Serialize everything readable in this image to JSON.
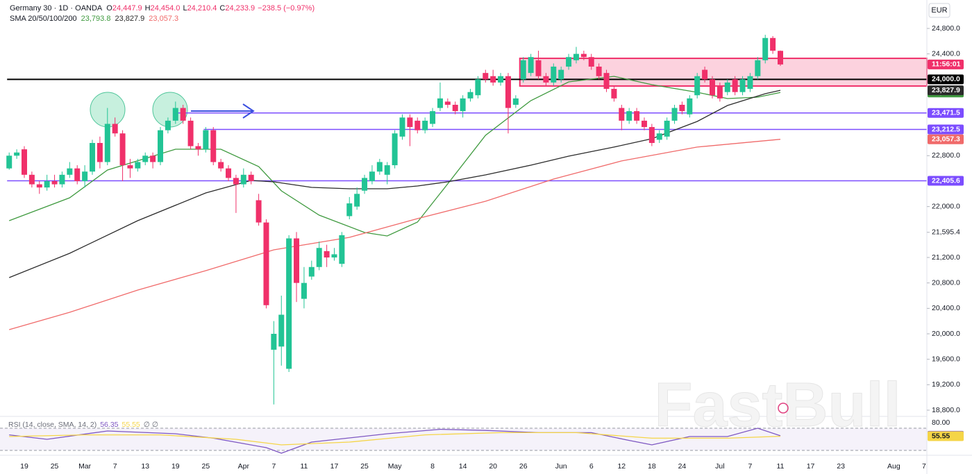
{
  "chart_data": {
    "type": "candlestick",
    "title": "Germany 30 · 1D · OANDA",
    "ohlc": [
      {
        "key": "O",
        "value": "24,447.9"
      },
      {
        "key": "H",
        "value": "24,454.0"
      },
      {
        "key": "L",
        "value": "24,210.4"
      },
      {
        "key": "C",
        "value": "24,233.9"
      }
    ],
    "change": "−238.5 (−0.97%)",
    "sma_title": "SMA 20/50/100/200",
    "currency": "EUR",
    "watermark": "FastBull",
    "countdown": "11:56:01",
    "up_color": "#22c495",
    "down_color": "#f0306a",
    "categories": [
      null,
      null,
      "19",
      null,
      null,
      null,
      "25",
      null,
      null,
      null,
      "Mar",
      null,
      null,
      null,
      "7",
      null,
      null,
      null,
      "13",
      null,
      null,
      null,
      "19",
      null,
      null,
      null,
      "25",
      null,
      null,
      null,
      null,
      "Apr",
      null,
      null,
      null,
      "7",
      null,
      null,
      null,
      "11",
      null,
      null,
      null,
      "17",
      null,
      null,
      null,
      "25",
      null,
      null,
      null,
      "May",
      null,
      null,
      null,
      null,
      "8",
      null,
      null,
      null,
      "14",
      null,
      null,
      null,
      "20",
      null,
      null,
      null,
      "26",
      null,
      null,
      null,
      null,
      "Jun",
      null,
      null,
      null,
      "6",
      null,
      null,
      null,
      "12",
      null,
      null,
      null,
      "18",
      null,
      null,
      null,
      "24",
      null,
      null,
      null,
      null,
      "Jul",
      null,
      null,
      null,
      "7",
      null,
      null,
      null,
      "11",
      null,
      null,
      null,
      "17",
      null,
      null,
      null,
      "23",
      null,
      null,
      null,
      null,
      null,
      null,
      "Aug",
      null,
      null,
      null,
      "7"
    ],
    "open": [
      22600,
      22800,
      22900,
      22500,
      22350,
      22300,
      22400,
      22350,
      22500,
      22600,
      22400,
      22550,
      23000,
      22700,
      23300,
      23150,
      22650,
      22600,
      22700,
      22800,
      22700,
      23200,
      23350,
      23550,
      23350,
      22950,
      22900,
      23200,
      22700,
      22600,
      22450,
      22350,
      22500,
      22100,
      21750,
      19750,
      19800,
      19450,
      21500,
      20550,
      20900,
      21050,
      21300,
      21200,
      21100,
      21850,
      22000,
      22250,
      22400,
      22550,
      22500,
      22650,
      23100,
      23400,
      23350,
      23200,
      23300,
      23550,
      23650,
      23600,
      23500,
      23700,
      23750,
      24100,
      24050,
      23950,
      24050,
      23600,
      24000,
      24100,
      24300,
      24050,
      23950,
      24000,
      24200,
      24300,
      24400,
      24350,
      24200,
      24100,
      23850,
      23550,
      23350,
      23500,
      23350,
      23250,
      23050,
      23100,
      23350,
      23600,
      23450,
      23750,
      24150,
      24000,
      23900,
      23800,
      24000,
      23800,
      23850,
      24050,
      24300,
      24650,
      24447.9,
      null,
      null,
      null,
      null,
      null,
      null,
      null,
      null,
      null,
      null,
      null,
      null,
      null,
      null,
      null,
      null,
      null,
      null,
      null
    ],
    "high": [
      22850,
      22900,
      22950,
      22550,
      22400,
      22500,
      22500,
      22550,
      22700,
      22650,
      22650,
      23050,
      23100,
      23550,
      23400,
      23200,
      22750,
      22750,
      22850,
      22850,
      23250,
      23400,
      23650,
      23600,
      23400,
      23000,
      23250,
      23250,
      22750,
      22650,
      22500,
      22600,
      22550,
      22200,
      21800,
      20200,
      20600,
      21550,
      21600,
      21050,
      21150,
      21450,
      21400,
      21350,
      21600,
      22150,
      22300,
      22500,
      22650,
      22750,
      22700,
      23200,
      23450,
      23450,
      23400,
      23400,
      23550,
      23950,
      23700,
      23650,
      23750,
      23850,
      24050,
      24150,
      24150,
      24100,
      24100,
      23750,
      24350,
      24400,
      24450,
      24100,
      24250,
      24200,
      24400,
      24510,
      24450,
      24400,
      24250,
      24150,
      23900,
      23600,
      23550,
      23550,
      23400,
      23300,
      23200,
      23400,
      23600,
      23650,
      23750,
      24100,
      24200,
      24050,
      23950,
      24000,
      24050,
      24050,
      24100,
      24350,
      24700,
      24680,
      24454.0,
      null,
      null,
      null,
      null,
      null,
      null,
      null,
      null,
      null,
      null,
      null,
      null,
      null,
      null,
      null,
      null,
      null,
      null,
      null
    ],
    "low": [
      22580,
      22750,
      22450,
      22300,
      22200,
      22250,
      22300,
      22300,
      22450,
      22350,
      22300,
      22500,
      22600,
      22650,
      23100,
      22400,
      22450,
      22550,
      22650,
      22600,
      22650,
      23150,
      23300,
      23300,
      22900,
      22800,
      22850,
      22650,
      22550,
      22400,
      21900,
      22300,
      22350,
      21700,
      20400,
      18890,
      19500,
      19400,
      20500,
      20400,
      20850,
      21000,
      21050,
      21150,
      21050,
      21800,
      21950,
      22200,
      22350,
      22500,
      22350,
      22600,
      23050,
      22950,
      23150,
      23150,
      23250,
      23500,
      23550,
      23450,
      23400,
      23650,
      23700,
      23950,
      23900,
      23900,
      23150,
      23550,
      23950,
      24050,
      24000,
      23900,
      23900,
      23950,
      24150,
      24250,
      24300,
      24150,
      24000,
      23800,
      23650,
      23200,
      23300,
      23300,
      23200,
      22950,
      23000,
      23050,
      23300,
      23450,
      23400,
      23700,
      23950,
      23700,
      23650,
      23750,
      23750,
      23750,
      23800,
      24000,
      24250,
      24400,
      24210.4,
      null,
      null,
      null,
      null,
      null,
      null,
      null,
      null,
      null,
      null,
      null,
      null,
      null,
      null,
      null,
      null,
      null,
      null,
      null
    ],
    "close": [
      22800,
      22850,
      22500,
      22350,
      22300,
      22400,
      22350,
      22500,
      22600,
      22400,
      22550,
      23000,
      22700,
      23300,
      23150,
      22650,
      22600,
      22700,
      22800,
      22700,
      23200,
      23350,
      23550,
      23350,
      22950,
      22900,
      23200,
      22700,
      22600,
      22450,
      22350,
      22500,
      22400,
      21750,
      20450,
      20000,
      20300,
      21500,
      20800,
      20800,
      21050,
      21350,
      21200,
      21250,
      21550,
      22050,
      22200,
      22450,
      22550,
      22700,
      22650,
      23150,
      23400,
      23250,
      23200,
      23350,
      23500,
      23700,
      23600,
      23500,
      23700,
      23800,
      24000,
      24000,
      23950,
      24050,
      23550,
      23700,
      24300,
      24350,
      24050,
      23950,
      24200,
      24150,
      24350,
      24400,
      24350,
      24200,
      24050,
      23850,
      23700,
      23350,
      23500,
      23350,
      23250,
      23000,
      23150,
      23350,
      23550,
      23500,
      23700,
      24050,
      24000,
      23750,
      23700,
      23950,
      23800,
      24000,
      24050,
      24300,
      24650,
      24450,
      24233.9,
      null,
      null,
      null,
      null,
      null,
      null,
      null,
      null,
      null,
      null,
      null,
      null,
      null,
      null,
      null,
      null,
      null,
      null,
      null
    ],
    "ylim": [
      18702,
      25247
    ],
    "yticks": [
      {
        "value": 24800,
        "label": "24,800.0"
      },
      {
        "value": 24400,
        "label": "24,400.0"
      },
      {
        "value": 22800,
        "label": "22,800.0"
      },
      {
        "value": 22000,
        "label": "22,000.0"
      },
      {
        "value": 21595.4,
        "label": "21,595.4"
      },
      {
        "value": 21200,
        "label": "21,200.0"
      },
      {
        "value": 20800,
        "label": "20,800.0"
      },
      {
        "value": 20400,
        "label": "20,400.0"
      },
      {
        "value": 20000,
        "label": "20,000.0"
      },
      {
        "value": 19600,
        "label": "19,600.0"
      },
      {
        "value": 19200,
        "label": "19,200.0"
      },
      {
        "value": 18800,
        "label": "18,800.0"
      }
    ],
    "lines": [
      {
        "color": "#3f9a3f",
        "x": [
          0,
          8,
          13,
          22,
          28,
          33,
          36,
          41,
          47,
          50,
          54,
          58,
          63,
          69,
          74,
          80,
          85,
          91,
          95,
          99,
          102
        ],
        "values": [
          21778,
          22138,
          22575,
          22902,
          22902,
          22629,
          22247,
          21865,
          21593,
          21538,
          21756,
          22356,
          23120,
          23665,
          23960,
          24047,
          23916,
          23796,
          23698,
          23720,
          23793.8
        ],
        "label": "23,793.8"
      },
      {
        "color": "#2b2b2b",
        "x": [
          0,
          8,
          17,
          26,
          32,
          35,
          40,
          45,
          50,
          54,
          58,
          63,
          69,
          74,
          80,
          85,
          91,
          95,
          100,
          102
        ],
        "values": [
          20884,
          21265,
          21778,
          22215,
          22411,
          22389,
          22302,
          22280,
          22280,
          22324,
          22389,
          22498,
          22651,
          22793,
          22935,
          23066,
          23338,
          23589,
          23774,
          23827.9
        ],
        "label": "23,827.9"
      },
      {
        "color": "#f06a6a",
        "x": [
          0,
          8,
          17,
          26,
          35,
          45,
          54,
          63,
          72,
          81,
          91,
          102
        ],
        "values": [
          20066,
          20338,
          20687,
          20993,
          21320,
          21516,
          21811,
          22084,
          22433,
          22717,
          22935,
          23057.3
        ],
        "label": "23,057.3"
      }
    ],
    "levels": [
      {
        "value": 24000,
        "label": "24,000.0",
        "color": "#000000",
        "from": 0
      },
      {
        "value": 23471.5,
        "label": "23,471.5",
        "color": "#7c4dff",
        "from": 22
      },
      {
        "value": 23212.5,
        "label": "23,212.5",
        "color": "#7c4dff",
        "from": 26
      },
      {
        "value": 22405.6,
        "label": "22,405.6",
        "color": "#7c4dff",
        "from": 0
      }
    ],
    "zone": {
      "top": 24330,
      "bottom": 23895,
      "from": 68,
      "color": "#f0306a"
    },
    "rsi": {
      "title": "RSI (14, close, SMA, 14, 2)",
      "extra": "∅ ∅",
      "ylim": [
        22.5,
        91.25
      ],
      "yticks": [
        {
          "value": 80,
          "label": "80.00"
        }
      ],
      "bands": [
        30,
        70
      ],
      "lines": [
        {
          "color": "#7e57c2",
          "x": [
            0,
            5,
            13,
            22,
            27,
            34,
            36,
            40,
            50,
            57,
            63,
            70,
            77,
            82,
            85,
            90,
            95,
            99,
            102
          ],
          "values": [
            58,
            50,
            65,
            60,
            52,
            35,
            25,
            45,
            60,
            68,
            66,
            62,
            62,
            48,
            40,
            55,
            55,
            70,
            56.35
          ],
          "label": "56.35"
        },
        {
          "color": "#f5d547",
          "x": [
            0,
            10,
            20,
            30,
            36,
            45,
            55,
            65,
            75,
            85,
            95,
            102
          ],
          "values": [
            55,
            58,
            58,
            50,
            40,
            45,
            58,
            62,
            62,
            52,
            52,
            55.55
          ],
          "label": "55.55"
        }
      ]
    }
  }
}
